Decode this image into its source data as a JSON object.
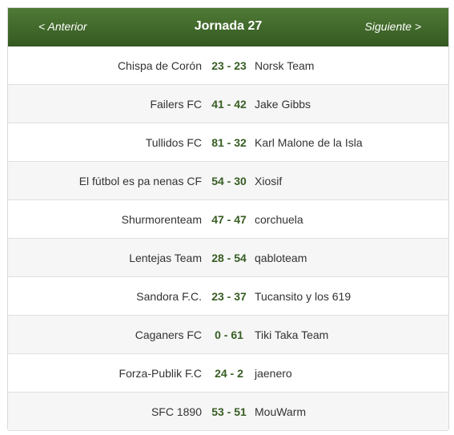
{
  "header": {
    "prev_label": "< Anterior",
    "title": "Jornada 27",
    "next_label": "Siguiente >"
  },
  "matches": [
    {
      "home": "Chispa de Corón",
      "score": "23 - 23",
      "away": "Norsk Team"
    },
    {
      "home": "Failers FC",
      "score": "41 - 42",
      "away": "Jake Gibbs"
    },
    {
      "home": "Tullidos FC",
      "score": "81 - 32",
      "away": "Karl Malone de la Isla"
    },
    {
      "home": "El fútbol es pa nenas CF",
      "score": "54 - 30",
      "away": "Xiosif"
    },
    {
      "home": "Shurmorenteam",
      "score": "47 - 47",
      "away": "corchuela"
    },
    {
      "home": "Lentejas Team",
      "score": "28 - 54",
      "away": "qabloteam"
    },
    {
      "home": "Sandora F.C.",
      "score": "23 - 37",
      "away": "Tucansito y los 619"
    },
    {
      "home": "Caganers FC",
      "score": "0 - 61",
      "away": "Tiki Taka Team"
    },
    {
      "home": "Forza-Publik F.C",
      "score": "24 - 2",
      "away": "jaenero"
    },
    {
      "home": "SFC 1890",
      "score": "53 - 51",
      "away": "MouWarm"
    }
  ],
  "colors": {
    "header_bg": "#416a2c",
    "score_text": "#375d23",
    "zebra_row": "#f6f6f6"
  }
}
